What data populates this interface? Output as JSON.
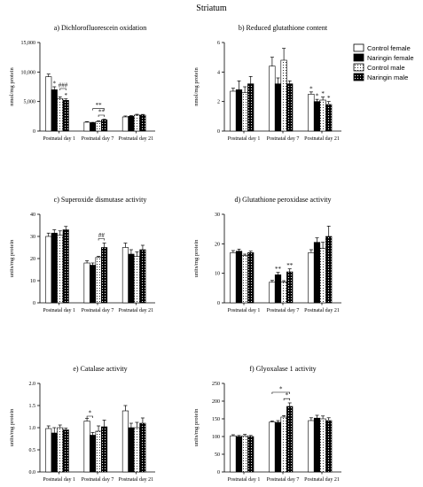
{
  "figure_title": "Striatum",
  "legend": [
    {
      "label": "Control female",
      "style": "white"
    },
    {
      "label": "Naringin female",
      "style": "black"
    },
    {
      "label": "Control male",
      "style": "dotted"
    },
    {
      "label": "Naringin male",
      "style": "black-dotted"
    }
  ],
  "chart_data": [
    {
      "type": "bar",
      "title": "a) Dichlorofluorescein oxidation",
      "ylabel": "nmol/mg protein",
      "categories": [
        "Postnatal day 1",
        "Postnatal day 7",
        "Postnatal day 21"
      ],
      "ylim": [
        0,
        15000
      ],
      "yticks": [
        0,
        5000,
        10000,
        15000
      ],
      "ytick_labels": [
        "0",
        "5,000",
        "10,000",
        "15,000"
      ],
      "series": [
        {
          "name": "Control female",
          "values": [
            9200,
            1500,
            2400
          ],
          "errors": [
            450,
            100,
            150
          ]
        },
        {
          "name": "Naringin female",
          "values": [
            7000,
            1400,
            2500
          ],
          "errors": [
            500,
            80,
            130
          ]
        },
        {
          "name": "Control male",
          "values": [
            5500,
            1600,
            2700
          ],
          "errors": [
            300,
            120,
            140
          ]
        },
        {
          "name": "Naringin male",
          "values": [
            5200,
            1900,
            2700
          ],
          "errors": [
            250,
            100,
            120
          ]
        }
      ],
      "annotations": [
        {
          "text": "*",
          "category": 0,
          "series": 1
        },
        {
          "text": "*",
          "category": 0,
          "series": 3
        },
        {
          "text": "###",
          "category": 0,
          "from": 2,
          "to": 3,
          "level": 7200
        },
        {
          "text": "**",
          "category": 1,
          "from": 1,
          "to": 3,
          "level": 3800
        },
        {
          "text": "**",
          "category": 1,
          "from": 2,
          "to": 3,
          "level": 2700
        }
      ]
    },
    {
      "type": "bar",
      "title": "b) Reduced glutathione content",
      "ylabel": "nmol/mg protein",
      "categories": [
        "Postnatal day 1",
        "Postnatal day 7",
        "Postnatal day 21"
      ],
      "ylim": [
        0,
        6
      ],
      "yticks": [
        0,
        2,
        4,
        6
      ],
      "ytick_labels": [
        "0",
        "2",
        "4",
        "6"
      ],
      "series": [
        {
          "name": "Control female",
          "values": [
            2.7,
            4.4,
            2.5
          ],
          "errors": [
            0.2,
            0.6,
            0.15
          ]
        },
        {
          "name": "Naringin female",
          "values": [
            2.8,
            3.2,
            2.0
          ],
          "errors": [
            0.6,
            0.4,
            0.15
          ]
        },
        {
          "name": "Control male",
          "values": [
            2.6,
            4.8,
            2.1
          ],
          "errors": [
            0.4,
            0.8,
            0.2
          ]
        },
        {
          "name": "Naringin male",
          "values": [
            3.2,
            3.2,
            1.8
          ],
          "errors": [
            0.5,
            0.2,
            0.2
          ]
        }
      ],
      "annotations": [
        {
          "text": "*",
          "category": 2,
          "series": 0
        },
        {
          "text": "*",
          "category": 2,
          "series": 1
        },
        {
          "text": "*",
          "category": 2,
          "series": 2
        },
        {
          "text": "*",
          "category": 2,
          "series": 3
        }
      ]
    },
    {
      "type": "bar",
      "title": "c) Superoxide dismutase activity",
      "ylabel": "units/mg protein",
      "categories": [
        "Postnatal day 1",
        "Postnatal day 7",
        "Postnatal day 21"
      ],
      "ylim": [
        0,
        40
      ],
      "yticks": [
        0,
        10,
        20,
        30,
        40
      ],
      "ytick_labels": [
        "0",
        "10",
        "20",
        "30",
        "40"
      ],
      "series": [
        {
          "name": "Control female",
          "values": [
            30,
            18,
            25
          ],
          "errors": [
            1.5,
            1,
            2
          ]
        },
        {
          "name": "Naringin female",
          "values": [
            31.5,
            17,
            22
          ],
          "errors": [
            1.5,
            1,
            2
          ]
        },
        {
          "name": "Control male",
          "values": [
            30.5,
            20.5,
            21
          ],
          "errors": [
            2,
            0.5,
            2
          ]
        },
        {
          "name": "Naringin male",
          "values": [
            33,
            25,
            24
          ],
          "errors": [
            1.5,
            2,
            2
          ]
        }
      ],
      "annotations": [
        {
          "text": "##",
          "category": 1,
          "from": 2,
          "to": 3,
          "level": 29
        }
      ]
    },
    {
      "type": "bar",
      "title": "d) Glutathione peroxidase activity",
      "ylabel": "units/mg protein",
      "categories": [
        "Postnatal day 1",
        "Postnatal day 7",
        "Postnatal day 21"
      ],
      "ylim": [
        0,
        30
      ],
      "yticks": [
        0,
        10,
        20,
        30
      ],
      "ytick_labels": [
        "0",
        "10",
        "20",
        "30"
      ],
      "series": [
        {
          "name": "Control female",
          "values": [
            17,
            7,
            17
          ],
          "errors": [
            0.7,
            0.6,
            1
          ]
        },
        {
          "name": "Naringin female",
          "values": [
            17.5,
            9.5,
            20.5
          ],
          "errors": [
            0.7,
            0.8,
            1.5
          ]
        },
        {
          "name": "Control male",
          "values": [
            16,
            7,
            18.5
          ],
          "errors": [
            0.5,
            0.5,
            2
          ]
        },
        {
          "name": "Naringin male",
          "values": [
            17,
            10.5,
            22.5
          ],
          "errors": [
            0.5,
            1,
            3.5
          ]
        }
      ],
      "annotations": [
        {
          "text": "**",
          "category": 1,
          "series": 1
        },
        {
          "text": "**",
          "category": 1,
          "series": 3
        }
      ]
    },
    {
      "type": "bar",
      "title": "e) Catalase activity",
      "ylabel": "units/mg protein",
      "categories": [
        "Postnatal day 1",
        "Postnatal day 7",
        "Postnatal day 21"
      ],
      "ylim": [
        0,
        2.0
      ],
      "yticks": [
        0,
        0.5,
        1.0,
        1.5,
        2.0
      ],
      "ytick_labels": [
        "0.0",
        "0.5",
        "1.0",
        "1.5",
        "2.0"
      ],
      "series": [
        {
          "name": "Control female",
          "values": [
            0.98,
            1.15,
            1.38
          ],
          "errors": [
            0.06,
            0.06,
            0.12
          ]
        },
        {
          "name": "Naringin female",
          "values": [
            0.88,
            0.83,
            1.0
          ],
          "errors": [
            0.12,
            0.06,
            0.1
          ]
        },
        {
          "name": "Control male",
          "values": [
            1.0,
            0.92,
            1.0
          ],
          "errors": [
            0.06,
            0.12,
            0.12
          ]
        },
        {
          "name": "Naringin male",
          "values": [
            0.95,
            1.02,
            1.1
          ],
          "errors": [
            0.04,
            0.15,
            0.12
          ]
        }
      ],
      "annotations": [
        {
          "text": "*",
          "category": 1,
          "from": 0,
          "to": 1,
          "level": 1.26
        }
      ]
    },
    {
      "type": "bar",
      "title": "f) Glyoxalase 1 activity",
      "ylabel": "units/mg protein",
      "categories": [
        "Postnatal day 1",
        "Postnatal day 7",
        "Postnatal day 21"
      ],
      "ylim": [
        0,
        250
      ],
      "yticks": [
        0,
        50,
        100,
        150,
        200,
        250
      ],
      "ytick_labels": [
        "0",
        "50",
        "100",
        "150",
        "200",
        "250"
      ],
      "series": [
        {
          "name": "Control female",
          "values": [
            102,
            141,
            145
          ],
          "errors": [
            3,
            3,
            8
          ]
        },
        {
          "name": "Naringin female",
          "values": [
            100,
            140,
            152
          ],
          "errors": [
            3,
            5,
            8
          ]
        },
        {
          "name": "Control male",
          "values": [
            102,
            155,
            150
          ],
          "errors": [
            4,
            4,
            8
          ]
        },
        {
          "name": "Naringin male",
          "values": [
            100,
            185,
            145
          ],
          "errors": [
            3,
            10,
            8
          ]
        }
      ],
      "annotations": [
        {
          "text": "*",
          "category": 1,
          "from": 0,
          "to": 3,
          "level": 225
        },
        {
          "text": "*",
          "category": 1,
          "from": 2,
          "to": 3,
          "level": 207
        }
      ]
    }
  ]
}
